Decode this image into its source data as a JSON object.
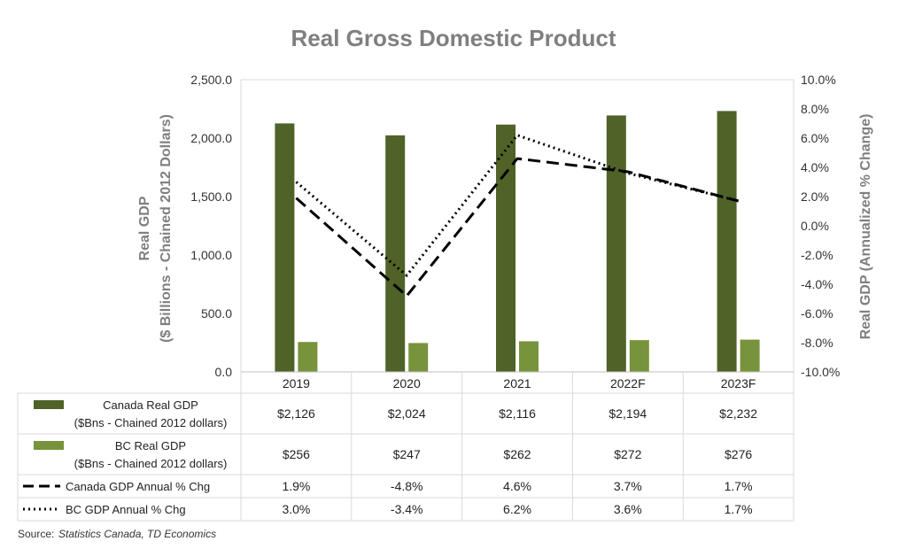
{
  "chart_data": {
    "type": "bar",
    "title": "Real Gross Domestic Product",
    "ylabel_left": [
      "Real GDP",
      "($ Billions - Chained 2012 Dollars)"
    ],
    "ylabel_right": "Real GDP (Annualized % Change)",
    "categories": [
      "2019",
      "2020",
      "2021",
      "2022F",
      "2023F"
    ],
    "ylim_left": [
      0,
      2500
    ],
    "yticks_left": [
      "0.0",
      "500.0",
      "1,000.0",
      "1,500.0",
      "2,000.0",
      "2,500.0"
    ],
    "ylim_right": [
      -10,
      10
    ],
    "yticks_right": [
      "-10.0%",
      "-8.0%",
      "-6.0%",
      "-4.0%",
      "-2.0%",
      "0.0%",
      "2.0%",
      "4.0%",
      "6.0%",
      "8.0%",
      "10.0%"
    ],
    "grid": false,
    "series": [
      {
        "name": [
          "Canada Real GDP",
          "($Bns - Chained 2012 dollars)"
        ],
        "type": "bar",
        "axis": "left",
        "color": "#4f6228",
        "values": [
          2126,
          2024,
          2116,
          2194,
          2232
        ],
        "labels": [
          "$2,126",
          "$2,024",
          "$2,116",
          "$2,194",
          "$2,232"
        ]
      },
      {
        "name": [
          "BC Real GDP",
          "($Bns - Chained 2012 dollars)"
        ],
        "type": "bar",
        "axis": "left",
        "color": "#77933c",
        "values": [
          256,
          247,
          262,
          272,
          276
        ],
        "labels": [
          "$256",
          "$247",
          "$262",
          "$272",
          "$276"
        ]
      },
      {
        "name": [
          "Canada GDP Annual % Chg"
        ],
        "type": "line",
        "axis": "right",
        "color": "#000000",
        "style": "dashed",
        "values": [
          1.9,
          -4.8,
          4.6,
          3.7,
          1.7
        ],
        "labels": [
          "1.9%",
          "-4.8%",
          "4.6%",
          "3.7%",
          "1.7%"
        ]
      },
      {
        "name": [
          "BC GDP Annual % Chg"
        ],
        "type": "line",
        "axis": "right",
        "color": "#000000",
        "style": "dotted",
        "values": [
          3.0,
          -3.4,
          6.2,
          3.6,
          1.7
        ],
        "labels": [
          "3.0%",
          "-3.4%",
          "6.2%",
          "3.6%",
          "1.7%"
        ]
      }
    ],
    "source_label": "Source:",
    "source_text": "Statistics Canada,  TD Economics"
  }
}
